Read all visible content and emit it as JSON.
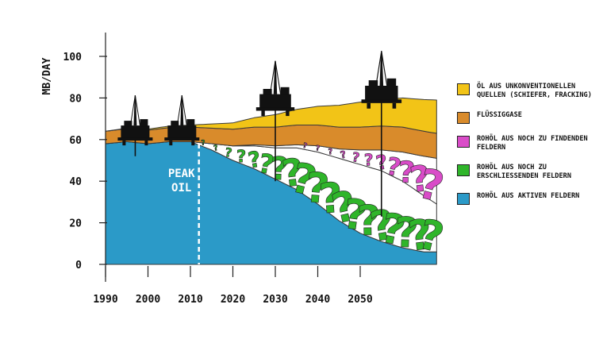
{
  "chart_data": {
    "type": "area",
    "ylabel": "MB/DAY",
    "ylim": [
      0,
      100
    ],
    "xlim": [
      1990,
      2070
    ],
    "yticks": [
      "0",
      "20",
      "40",
      "60",
      "80",
      "100"
    ],
    "xticks": [
      "1990",
      "2000",
      "2010",
      "2020",
      "2030",
      "2040",
      "2050"
    ],
    "annotation": "PEAK OIL",
    "annotation_year": 2012,
    "colors": {
      "active": "#2b9ac8",
      "tobedeveloped": "#2fb52a",
      "tobefound": "#d94cc8",
      "lng": "#d98b2b",
      "unconventional": "#f2c417"
    },
    "series": [
      {
        "name": "Rohöl aus aktiven Feldern",
        "x": [
          1990,
          1995,
          2000,
          2005,
          2010,
          2015,
          2020,
          2025,
          2030,
          2035,
          2040,
          2045,
          2050,
          2055,
          2060,
          2065,
          2068
        ],
        "values": [
          58,
          59,
          58,
          59,
          59,
          55,
          50,
          46,
          41,
          36,
          29,
          21,
          15,
          11,
          8,
          6,
          6
        ]
      },
      {
        "name": "Rohöl aus noch zu erschliessenden Feldern",
        "x": [
          2010,
          2015,
          2020,
          2025,
          2030,
          2035,
          2040,
          2045,
          2050,
          2055,
          2060,
          2065,
          2068
        ],
        "values": [
          0,
          3,
          7,
          11,
          15,
          20,
          25,
          30,
          33,
          34,
          32,
          27,
          23
        ]
      },
      {
        "name": "Rohöl aus noch zu findenden Feldern",
        "x": [
          2020,
          2025,
          2030,
          2035,
          2040,
          2045,
          2050,
          2055,
          2060,
          2065,
          2068
        ],
        "values": [
          0,
          0.5,
          1,
          1.5,
          3,
          4.5,
          7,
          10,
          14,
          19,
          22
        ]
      },
      {
        "name": "Flüssiggase",
        "x": [
          1990,
          2000,
          2010,
          2020,
          2030,
          2040,
          2050,
          2060,
          2068
        ],
        "values": [
          6,
          6.5,
          7,
          8,
          9,
          10,
          11,
          12,
          12
        ]
      },
      {
        "name": "Öl aus unkonventionellen Quellen (Schiefer, Fracking)",
        "x": [
          1990,
          2000,
          2010,
          2020,
          2030,
          2040,
          2050,
          2060,
          2068
        ],
        "values": [
          0,
          0.5,
          1,
          3,
          6,
          9,
          12,
          14,
          16
        ]
      }
    ]
  },
  "legend": [
    {
      "label": "Öl aus unkonventionellen Quellen (Schiefer, Fracking)",
      "color": "#f2c417"
    },
    {
      "label": "Flüssiggase",
      "color": "#d98b2b"
    },
    {
      "label": "Rohöl aus noch zu findenden Feldern",
      "color": "#d94cc8"
    },
    {
      "label": "Rohöl aus noch zu erschliessenden Feldern",
      "color": "#2fb52a"
    },
    {
      "label": "Rohöl aus aktiven Feldern",
      "color": "#2b9ac8"
    }
  ],
  "icons": [
    "oil-rig-icon",
    "question-mark-icon"
  ]
}
